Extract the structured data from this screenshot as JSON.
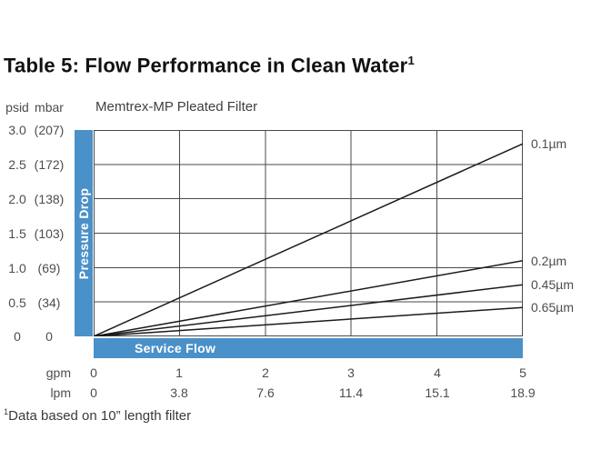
{
  "page": {
    "title": "Table 5: Flow Performance in Clean Water",
    "title_superscript": "1",
    "footnote_superscript": "1",
    "footnote": "Data based on 10” length filter"
  },
  "chart": {
    "subtitle": "Memtrex-MP Pleated Filter",
    "y_axis_header_psid": "psid",
    "y_axis_header_mbar": "mbar",
    "pressure_drop_label": "Pressure Drop",
    "service_flow_label": "Service Flow",
    "gpm_label": "gpm",
    "lpm_label": "lpm",
    "accent_color": "#4a90c9",
    "line_color": "#1b1b1b",
    "grid_color": "#4a4a4a"
  },
  "chart_data": {
    "type": "line",
    "title": "Memtrex-MP Pleated Filter",
    "xlabel": "Service Flow",
    "ylabel": "Pressure Drop",
    "xlim": [
      0,
      5
    ],
    "ylim": [
      0,
      3.0
    ],
    "grid": true,
    "legend_position": "right-of-line-ends",
    "x_gpm": [
      0,
      1,
      2,
      3,
      4,
      5
    ],
    "x_gpm_labels": [
      "0",
      "1",
      "2",
      "3",
      "4",
      "5"
    ],
    "x_lpm_labels": [
      "0",
      "3.8",
      "7.6",
      "11.4",
      "15.1",
      "18.9"
    ],
    "y_psid": [
      3.0,
      2.5,
      2.0,
      1.5,
      1.0,
      0.5,
      0
    ],
    "y_psid_labels": [
      "3.0",
      "2.5",
      "2.0",
      "1.5",
      "1.0",
      "0.5",
      "0"
    ],
    "y_mbar_labels": [
      "(207)",
      "(172)",
      "(138)",
      "(103)",
      "(69)",
      "(34)",
      "0"
    ],
    "series": [
      {
        "name": "0.1µm",
        "x": [
          0,
          5
        ],
        "y": [
          0,
          2.8
        ]
      },
      {
        "name": "0.2µm",
        "x": [
          0,
          5
        ],
        "y": [
          0,
          1.1
        ]
      },
      {
        "name": "0.45µm",
        "x": [
          0,
          5
        ],
        "y": [
          0,
          0.75
        ]
      },
      {
        "name": "0.65µm",
        "x": [
          0,
          5
        ],
        "y": [
          0,
          0.42
        ]
      }
    ]
  }
}
